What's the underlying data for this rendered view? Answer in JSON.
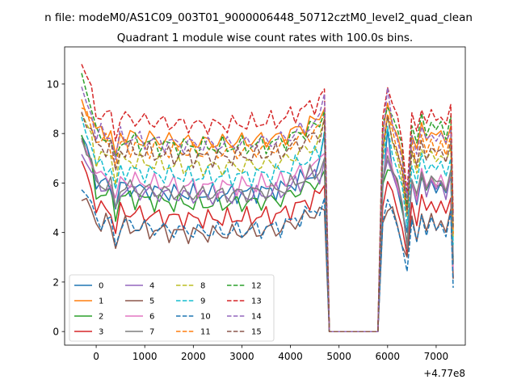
{
  "figure": {
    "suptitle": "n file: modeM0/AS1C09_003T01_9000006448_50712cztM0_level2_quad_clean",
    "title": "Quadrant 1 module wise count rates with 100.0s bins.",
    "x_offset_label": "+4.77e8"
  },
  "chart_data": {
    "type": "line",
    "title": "Quadrant 1 module wise count rates with 100.0s bins.",
    "xlabel": "",
    "ylabel": "",
    "x_offset": 477000000,
    "xlim": [
      -650,
      7600
    ],
    "ylim": [
      -0.55,
      11.5
    ],
    "xticks": [
      0,
      1000,
      2000,
      3000,
      4000,
      5000,
      6000,
      7000
    ],
    "xtick_labels": [
      "0",
      "1000",
      "2000",
      "3000",
      "4000",
      "5000",
      "6000",
      "7000"
    ],
    "yticks": [
      0,
      2,
      4,
      6,
      8,
      10
    ],
    "ytick_labels": [
      "0",
      "2",
      "4",
      "6",
      "8",
      "10"
    ],
    "grid": false,
    "legend_placement": "lower-left",
    "legend_columns": 4,
    "x": [
      -300,
      -200,
      -100,
      0,
      100,
      200,
      300,
      400,
      500,
      600,
      700,
      800,
      900,
      1000,
      1100,
      1200,
      1300,
      1400,
      1500,
      1600,
      1700,
      1800,
      1900,
      2000,
      2100,
      2200,
      2300,
      2400,
      2500,
      2600,
      2700,
      2800,
      2900,
      3000,
      3100,
      3200,
      3300,
      3400,
      3500,
      3600,
      3700,
      3800,
      3900,
      4000,
      4100,
      4200,
      4300,
      4400,
      4500,
      4600,
      4700,
      4800,
      4900,
      5000,
      5100,
      5200,
      5300,
      5400,
      5500,
      5600,
      5700,
      5800,
      5900,
      6000,
      6100,
      6200,
      6300,
      6400,
      6500,
      6600,
      6700,
      6800,
      6900,
      7000,
      7100,
      7200,
      7300,
      7350
    ],
    "gap": {
      "start": 4800,
      "end": 5850,
      "value": 0
    },
    "series": [
      {
        "name": "0",
        "color": "#1f77b4",
        "dash": "solid",
        "level": 6.0,
        "start": 7.9,
        "peak": 8.0,
        "low": 3.9,
        "p2": 6.2
      },
      {
        "name": "1",
        "color": "#ff7f0e",
        "dash": "solid",
        "level": 8.1,
        "start": 9.2,
        "peak": 9.0,
        "low": 4.6,
        "p2": 8.3
      },
      {
        "name": "2",
        "color": "#2ca02c",
        "dash": "solid",
        "level": 5.6,
        "start": 8.0,
        "peak": 6.5,
        "low": 3.6,
        "p2": 6.3
      },
      {
        "name": "3",
        "color": "#d62728",
        "dash": "solid",
        "level": 5.0,
        "start": 6.8,
        "peak": 5.9,
        "low": 3.0,
        "p2": 5.4
      },
      {
        "name": "4",
        "color": "#9467bd",
        "dash": "solid",
        "level": 5.9,
        "start": 7.2,
        "peak": 6.9,
        "low": 3.5,
        "p2": 6.2
      },
      {
        "name": "5",
        "color": "#8c564b",
        "dash": "solid",
        "level": 4.4,
        "start": 5.5,
        "peak": 4.9,
        "low": 3.1,
        "p2": 4.7
      },
      {
        "name": "6",
        "color": "#e377c2",
        "dash": "solid",
        "level": 6.3,
        "start": 7.6,
        "peak": 7.2,
        "low": 3.3,
        "p2": 6.4
      },
      {
        "name": "7",
        "color": "#7f7f7f",
        "dash": "solid",
        "level": 6.0,
        "start": 7.8,
        "peak": 7.0,
        "low": 3.4,
        "p2": 6.4
      },
      {
        "name": "8",
        "color": "#bcbd22",
        "dash": "dashed",
        "level": 7.1,
        "start": 8.8,
        "peak": 8.6,
        "low": 4.6,
        "p2": 7.4
      },
      {
        "name": "9",
        "color": "#17becf",
        "dash": "dashed",
        "level": 6.7,
        "start": 8.5,
        "peak": 8.1,
        "low": 4.2,
        "p2": 7.0
      },
      {
        "name": "10",
        "color": "#1f77b4",
        "dash": "dashed",
        "level": 4.5,
        "start": 5.9,
        "peak": 5.4,
        "low": 2.6,
        "p2": 4.6
      },
      {
        "name": "11",
        "color": "#ff7f0e",
        "dash": "dashed",
        "level": 7.7,
        "start": 9.1,
        "peak": 8.7,
        "low": 4.9,
        "p2": 7.8
      },
      {
        "name": "12",
        "color": "#2ca02c",
        "dash": "dashed",
        "level": 7.9,
        "start": 10.4,
        "peak": 8.9,
        "low": 5.0,
        "p2": 8.6
      },
      {
        "name": "13",
        "color": "#d62728",
        "dash": "dashed",
        "level": 8.8,
        "start": 10.9,
        "peak": 9.8,
        "low": 5.6,
        "p2": 9.0
      },
      {
        "name": "14",
        "color": "#9467bd",
        "dash": "dashed",
        "level": 8.0,
        "start": 9.7,
        "peak": 9.6,
        "low": 5.2,
        "p2": 8.2
      },
      {
        "name": "15",
        "color": "#8c564b",
        "dash": "dashed",
        "level": 7.5,
        "start": 8.8,
        "peak": 8.6,
        "low": 4.8,
        "p2": 7.6
      }
    ]
  }
}
